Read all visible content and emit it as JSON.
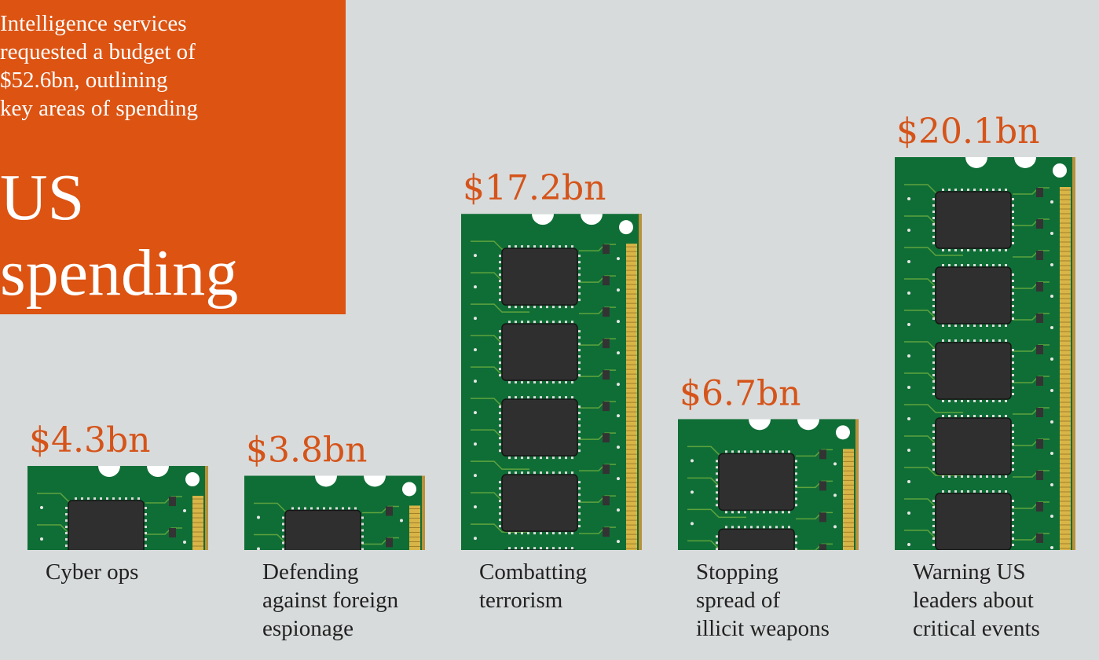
{
  "colors": {
    "accent": "#dc5312",
    "value_text": "#d5541a",
    "background": "#d8dbdb",
    "board": "#0f6e36",
    "chip": "#2f2f2f",
    "contacts": "#d9b548"
  },
  "chart_data": {
    "type": "bar",
    "title": "US\nspending",
    "subtitle": "Intelligence services\nrequested a budget of\n$52.6bn, outlining\nkey areas of spending",
    "categories": [
      "Cyber ops",
      "Defending\nagainst foreign\nespionage",
      "Combatting\nterrorism",
      "Stopping\nspread of\nillicit weapons",
      "Warning US\nleaders about\ncritical events"
    ],
    "values": [
      4.3,
      3.8,
      17.2,
      6.7,
      20.1
    ],
    "value_labels": [
      "$4.3bn",
      "$3.8bn",
      "$17.2bn",
      "$6.7bn",
      "$20.1bn"
    ],
    "unit": "$bn",
    "ylim": [
      0,
      20.1
    ],
    "bar_style": "memory-module"
  }
}
